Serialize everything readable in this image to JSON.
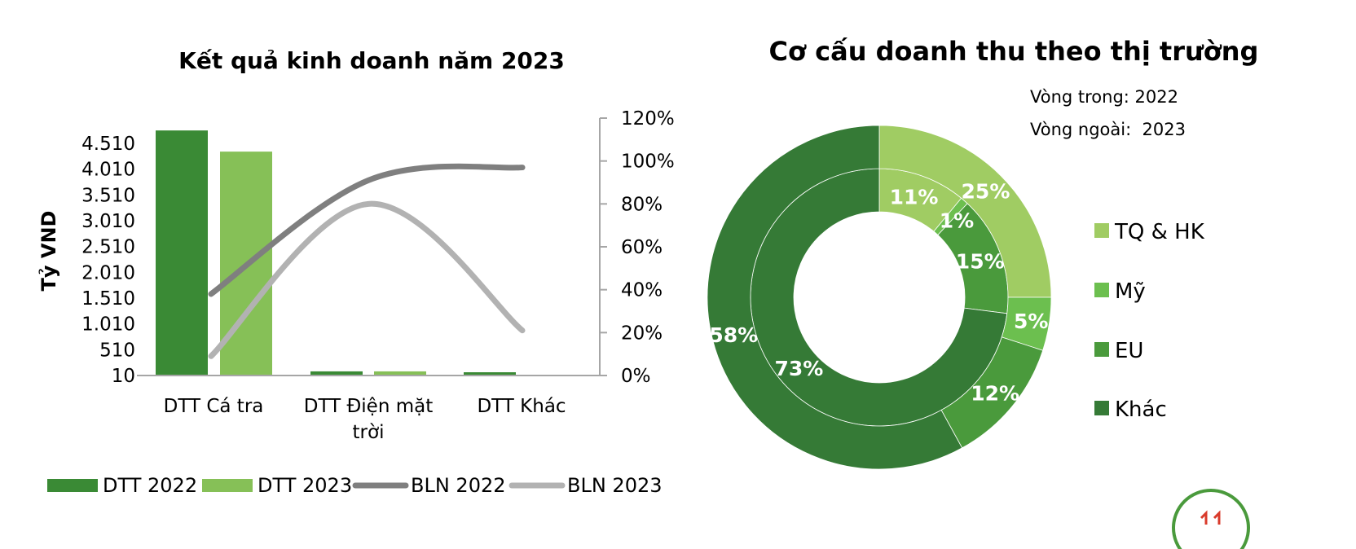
{
  "chart_data": [
    {
      "type": "bar",
      "title": "Kết quả kinh doanh năm 2023",
      "ylabel": "Tỷ VND",
      "categories": [
        "DTT Cá tra",
        "DTT Điện mặt trời",
        "DTT Khác"
      ],
      "y_ticks": [
        "10",
        "510",
        "1.010",
        "1.510",
        "2.010",
        "2.510",
        "3.010",
        "3.510",
        "4.010",
        "4.510"
      ],
      "ylim": [
        10,
        4510
      ],
      "y2_ticks": [
        "0%",
        "20%",
        "40%",
        "60%",
        "80%",
        "100%",
        "120%"
      ],
      "y2lim": [
        0,
        120
      ],
      "series": [
        {
          "name": "DTT 2022",
          "kind": "bar",
          "axis": "left",
          "values": [
            4760,
            90,
            60
          ],
          "color": "#3a8a35"
        },
        {
          "name": "DTT 2023",
          "kind": "bar",
          "axis": "left",
          "values": [
            4350,
            90,
            0
          ],
          "color": "#86c057"
        },
        {
          "name": "BLN 2022",
          "kind": "line",
          "axis": "right",
          "values": [
            38,
            91,
            97
          ],
          "color": "#7f7f7f"
        },
        {
          "name": "BLN 2023",
          "kind": "line",
          "axis": "right",
          "values": [
            9,
            80,
            21
          ],
          "color": "#b2b2b2"
        }
      ],
      "legend_position": "bottom",
      "grid": false
    },
    {
      "type": "pie",
      "title": "Cơ cấu doanh thu theo thị trường",
      "notes": [
        "Vòng trong: 2022",
        "Vòng ngoài:  2023"
      ],
      "categories": [
        "TQ & HK",
        "Mỹ",
        "EU",
        "Khác"
      ],
      "colors": [
        "#a0cc63",
        "#6cbf4f",
        "#4a9a3c",
        "#357a36"
      ],
      "series": [
        {
          "name": "2022",
          "ring": "inner",
          "values": [
            11,
            1,
            15,
            73
          ],
          "labels": [
            "11%",
            "1%",
            "15%",
            "73%"
          ]
        },
        {
          "name": "2023",
          "ring": "outer",
          "values": [
            25,
            5,
            12,
            58
          ],
          "labels": [
            "25%",
            "5%",
            "12%",
            "58%"
          ]
        }
      ],
      "legend_position": "right"
    }
  ]
}
